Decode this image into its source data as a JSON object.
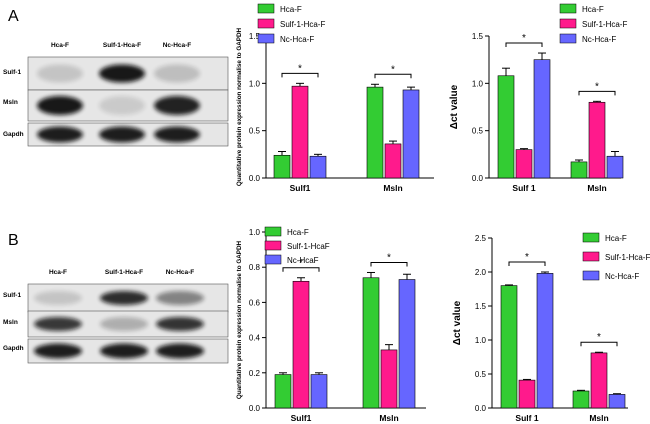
{
  "panels": {
    "A": {
      "label": "A",
      "blot": {
        "columns": [
          "Hca-F",
          "Sulf-1-Hca-F",
          "Nc-Hca-F"
        ],
        "rows": [
          "Sulf-1",
          "Msln",
          "Gapdh"
        ],
        "intensity": [
          [
            0.15,
            0.95,
            0.18
          ],
          [
            0.95,
            0.12,
            0.9
          ],
          [
            0.92,
            0.92,
            0.92
          ]
        ]
      }
    },
    "B": {
      "label": "B",
      "blot": {
        "columns": [
          "Hca-F",
          "Sulf-1-Hca-F",
          "Nc-Hca-F"
        ],
        "rows": [
          "Sulf-1",
          "Msln",
          "Gapdh"
        ],
        "intensity": [
          [
            0.15,
            0.85,
            0.45
          ],
          [
            0.8,
            0.25,
            0.82
          ],
          [
            0.92,
            0.92,
            0.92
          ]
        ]
      }
    }
  },
  "colors": {
    "green": "#33cc33",
    "pink": "#ff1a8c",
    "blue": "#6666ff"
  },
  "chart_data": [
    {
      "panel": "A",
      "type": "bar",
      "categories": [
        "Sulf1",
        "Msln"
      ],
      "ylabel": "Quantitative protein expression normalise to GAPDH",
      "ylim": [
        0,
        1.5
      ],
      "yticks": [
        "0.0",
        "0.5",
        "1.0",
        "1.5"
      ],
      "series": [
        {
          "name": "Hca-F",
          "color": "#33cc33",
          "values": [
            0.24,
            0.96
          ],
          "errors": [
            0.04,
            0.03
          ]
        },
        {
          "name": "Sulf-1-Hca-F",
          "color": "#ff1a8c",
          "values": [
            0.97,
            0.36
          ],
          "errors": [
            0.03,
            0.03
          ]
        },
        {
          "name": "Nc-Hca-F",
          "color": "#6666ff",
          "values": [
            0.23,
            0.93
          ],
          "errors": [
            0.02,
            0.03
          ]
        }
      ],
      "significance": [
        [
          "Sulf1",
          "*"
        ],
        [
          "Msln",
          "*"
        ]
      ],
      "legend": "top-left"
    },
    {
      "panel": "A",
      "type": "bar",
      "categories": [
        "Sulf 1",
        "Msln"
      ],
      "ylabel": "Δct value",
      "ylim": [
        0,
        1.5
      ],
      "yticks": [
        "0.0",
        "0.5",
        "1.0",
        "1.5"
      ],
      "series": [
        {
          "name": "Hca-F",
          "color": "#33cc33",
          "values": [
            1.08,
            0.17
          ],
          "errors": [
            0.08,
            0.02
          ]
        },
        {
          "name": "Sulf-1-Hca-F",
          "color": "#ff1a8c",
          "values": [
            0.3,
            0.8
          ],
          "errors": [
            0.01,
            0.01
          ]
        },
        {
          "name": "Nc-Hca-F",
          "color": "#6666ff",
          "values": [
            1.25,
            0.23
          ],
          "errors": [
            0.07,
            0.05
          ]
        }
      ],
      "significance": [
        [
          "Sulf 1",
          "*"
        ],
        [
          "Msln",
          "*"
        ]
      ],
      "legend": "top-right"
    },
    {
      "panel": "B",
      "type": "bar",
      "categories": [
        "Sulf1",
        "Msln"
      ],
      "ylabel": "Quantitative protein expression normalise to GAPDH",
      "ylim": [
        0,
        1.0
      ],
      "yticks": [
        "0.0",
        "0.2",
        "0.4",
        "0.6",
        "0.8",
        "1.0"
      ],
      "series": [
        {
          "name": "Hca-F",
          "color": "#33cc33",
          "values": [
            0.19,
            0.74
          ],
          "errors": [
            0.01,
            0.03
          ]
        },
        {
          "name": "Sulf-1-HcaF",
          "color": "#ff1a8c",
          "values": [
            0.72,
            0.33
          ],
          "errors": [
            0.02,
            0.03
          ]
        },
        {
          "name": "Nc-HcaF",
          "color": "#6666ff",
          "values": [
            0.19,
            0.73
          ],
          "errors": [
            0.01,
            0.03
          ]
        }
      ],
      "significance": [
        [
          "Sulf1",
          "*"
        ],
        [
          "Msln",
          "*"
        ]
      ],
      "legend": "top-left"
    },
    {
      "panel": "B",
      "type": "bar",
      "categories": [
        "Sulf 1",
        "Msln"
      ],
      "ylabel": "Δct value",
      "ylim": [
        0,
        2.5
      ],
      "yticks": [
        "0.0",
        "0.5",
        "1.0",
        "1.5",
        "2.0",
        "2.5"
      ],
      "series": [
        {
          "name": "Hca-F",
          "color": "#33cc33",
          "values": [
            1.8,
            0.25
          ],
          "errors": [
            0.01,
            0.01
          ]
        },
        {
          "name": "Sulf-1-Hca-F",
          "color": "#ff1a8c",
          "values": [
            0.41,
            0.81
          ],
          "errors": [
            0.01,
            0.01
          ]
        },
        {
          "name": "Nc-Hca-F",
          "color": "#6666ff",
          "values": [
            1.98,
            0.2
          ],
          "errors": [
            0.02,
            0.01
          ]
        }
      ],
      "significance": [
        [
          "Sulf 1",
          "*"
        ],
        [
          "Msln",
          "*"
        ]
      ],
      "legend": "top-right"
    }
  ]
}
